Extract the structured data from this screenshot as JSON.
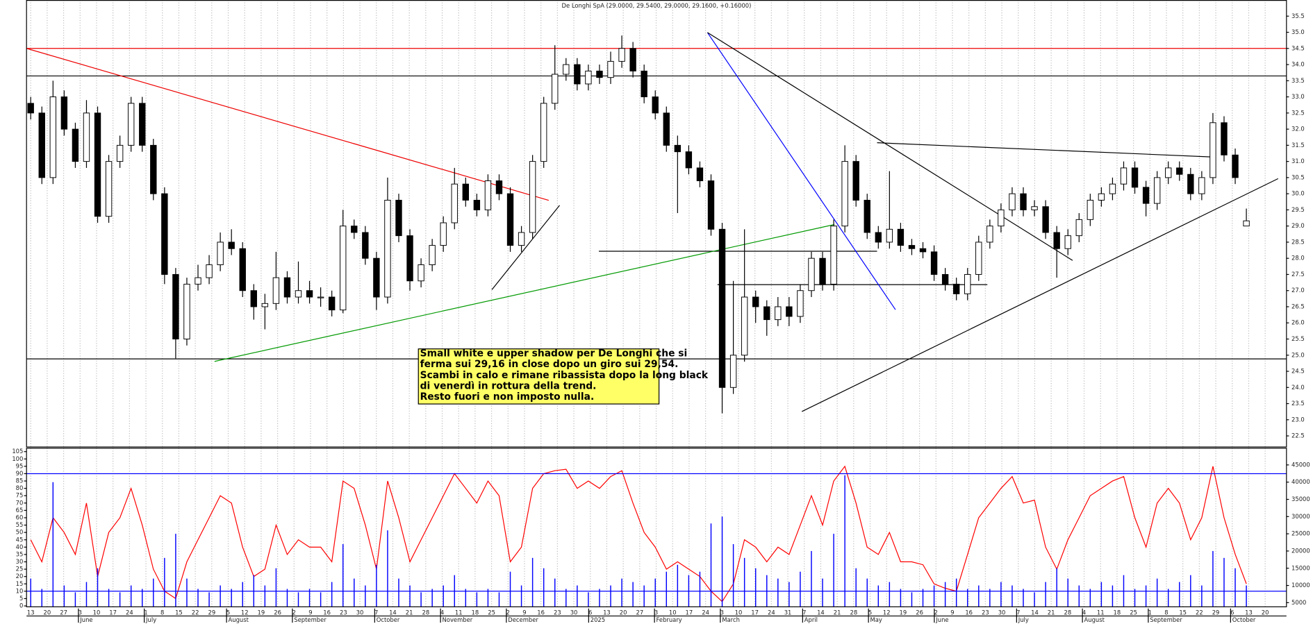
{
  "chart_data": [
    {
      "type": "candlestick",
      "title": "De Longhi SpA (29.0000, 29.5400, 29.0000, 29.1600, +0.16000)",
      "open": [
        32.8,
        32.5,
        30.5,
        33.0,
        32.0,
        31.0,
        32.5,
        29.3,
        31.0,
        31.5,
        32.8,
        31.5,
        30.0,
        27.5,
        25.5,
        27.2,
        27.4,
        27.8,
        28.5,
        28.3,
        27.0,
        26.5,
        26.6,
        27.4,
        26.8,
        27.0,
        26.8,
        26.8,
        26.4,
        29.0,
        28.8,
        28.0,
        26.8,
        29.8,
        28.7,
        27.3,
        27.8,
        28.4,
        29.1,
        30.3,
        29.8,
        29.5,
        30.4,
        30.0,
        28.4,
        28.8,
        31.0,
        32.8,
        33.7,
        34.0,
        33.4,
        33.8,
        33.6,
        34.1,
        34.5,
        33.8,
        33.0,
        32.5,
        31.5,
        31.3,
        30.8,
        30.4,
        28.9,
        24.0,
        25.0,
        26.8,
        26.5,
        26.1,
        26.5,
        26.2,
        27.0,
        28.0,
        27.2,
        29.0,
        31.0,
        29.8,
        28.8,
        28.5,
        28.9,
        28.4,
        28.3,
        28.2,
        27.5,
        27.2,
        26.9,
        27.5,
        28.5,
        29.0,
        29.5,
        30.0,
        29.5,
        29.6,
        28.8,
        28.3,
        28.7,
        29.2,
        29.8,
        30.0,
        30.3,
        30.8,
        30.2,
        29.7,
        30.5,
        30.8,
        30.6,
        30.0,
        30.5,
        32.2,
        31.2,
        29.0
      ],
      "high": [
        33.0,
        32.7,
        33.5,
        33.2,
        32.2,
        32.9,
        32.7,
        31.2,
        31.8,
        33.0,
        33.0,
        31.7,
        30.2,
        27.7,
        27.4,
        27.8,
        28.1,
        28.8,
        28.9,
        28.5,
        27.2,
        26.9,
        28.2,
        27.6,
        27.9,
        27.3,
        27.1,
        27.0,
        29.5,
        29.2,
        29.0,
        28.2,
        30.5,
        30.0,
        28.9,
        28.0,
        28.6,
        29.3,
        30.8,
        30.5,
        30.0,
        30.6,
        30.6,
        30.2,
        29.0,
        31.2,
        33.0,
        34.6,
        34.2,
        34.2,
        34.0,
        34.0,
        34.4,
        34.9,
        34.7,
        34.0,
        33.2,
        32.7,
        31.8,
        31.5,
        31.0,
        30.6,
        29.1,
        27.3,
        28.9,
        27.0,
        26.7,
        26.8,
        26.8,
        27.2,
        28.2,
        28.2,
        29.2,
        31.5,
        31.2,
        30.0,
        29.0,
        30.7,
        29.1,
        28.6,
        28.5,
        28.4,
        27.7,
        27.4,
        27.7,
        28.7,
        29.2,
        29.7,
        30.2,
        30.2,
        29.8,
        29.8,
        29.0,
        28.9,
        29.4,
        30.0,
        30.2,
        30.5,
        31.0,
        31.0,
        30.4,
        30.7,
        31.0,
        31.0,
        30.8,
        30.7,
        32.5,
        32.4,
        31.4,
        29.54
      ],
      "low": [
        32.3,
        30.3,
        30.3,
        31.8,
        30.8,
        30.8,
        29.1,
        29.1,
        30.8,
        31.3,
        31.3,
        29.8,
        27.2,
        24.9,
        25.3,
        27.0,
        27.2,
        27.6,
        28.1,
        26.8,
        26.1,
        25.8,
        26.4,
        26.6,
        26.6,
        26.6,
        26.5,
        26.2,
        26.3,
        28.6,
        27.8,
        26.4,
        26.6,
        28.5,
        27.0,
        27.1,
        27.6,
        28.2,
        28.9,
        29.6,
        29.3,
        29.3,
        29.8,
        28.2,
        28.2,
        28.6,
        30.8,
        32.6,
        33.5,
        33.2,
        33.2,
        33.4,
        33.4,
        33.9,
        33.6,
        32.8,
        32.3,
        31.3,
        29.4,
        30.6,
        30.2,
        28.7,
        23.2,
        23.8,
        24.8,
        26.0,
        25.6,
        25.9,
        25.9,
        26.0,
        26.8,
        27.0,
        27.0,
        28.8,
        29.6,
        28.6,
        28.3,
        28.3,
        28.2,
        28.1,
        28.0,
        27.3,
        27.0,
        26.7,
        26.7,
        27.3,
        28.3,
        28.8,
        29.3,
        29.3,
        29.3,
        28.6,
        27.4,
        28.1,
        28.5,
        29.0,
        29.6,
        29.8,
        30.1,
        30.0,
        29.3,
        29.5,
        30.3,
        30.4,
        29.8,
        29.8,
        30.3,
        31.0,
        30.3,
        29.0
      ],
      "close": [
        32.5,
        30.5,
        33.0,
        32.0,
        31.0,
        32.5,
        29.3,
        31.0,
        31.5,
        32.8,
        31.5,
        30.0,
        27.5,
        25.5,
        27.2,
        27.4,
        27.8,
        28.5,
        28.3,
        27.0,
        26.5,
        26.6,
        27.4,
        26.8,
        27.0,
        26.8,
        26.8,
        26.4,
        29.0,
        28.8,
        28.0,
        26.8,
        29.8,
        28.7,
        27.3,
        27.8,
        28.4,
        29.1,
        30.3,
        29.8,
        29.5,
        30.4,
        30.0,
        28.4,
        28.8,
        31.0,
        32.8,
        33.7,
        34.0,
        33.4,
        33.8,
        33.6,
        34.1,
        34.5,
        33.8,
        33.0,
        32.5,
        31.5,
        31.3,
        30.8,
        30.4,
        28.9,
        24.0,
        25.0,
        26.8,
        26.5,
        26.1,
        26.5,
        26.2,
        27.0,
        28.0,
        27.2,
        29.0,
        31.0,
        29.8,
        28.8,
        28.5,
        28.9,
        28.4,
        28.3,
        28.2,
        27.5,
        27.2,
        26.9,
        27.5,
        28.5,
        29.0,
        29.5,
        30.0,
        29.5,
        29.6,
        28.8,
        28.3,
        28.7,
        29.2,
        29.8,
        30.0,
        30.3,
        30.8,
        30.2,
        29.7,
        30.5,
        30.8,
        30.6,
        30.0,
        30.5,
        32.2,
        31.2,
        30.5,
        29.16
      ],
      "ylim": [
        22.17,
        36.0
      ],
      "yticks": [
        22.5,
        {
          "value": 23,
          "label": "23.0"
        },
        23.5,
        {
          "value": 24,
          "label": "24.0"
        },
        24.5,
        {
          "value": 25,
          "label": "25.0"
        },
        25.5,
        {
          "value": 26,
          "label": "26.0"
        },
        26.5,
        {
          "value": 27,
          "label": "27.0"
        },
        27.5,
        {
          "value": 28,
          "label": "28.0"
        },
        28.5,
        {
          "value": 29,
          "label": "29.0"
        },
        29.5,
        {
          "value": 30,
          "label": "30.0"
        },
        30.5,
        {
          "value": 31,
          "label": "31.0"
        },
        31.5,
        {
          "value": 32,
          "label": "32.0"
        },
        32.5,
        {
          "value": 33,
          "label": "33.0"
        },
        33.5,
        {
          "value": 34,
          "label": "34.0"
        },
        34.5,
        {
          "value": 35,
          "label": "35.0"
        },
        35.5
      ],
      "up_color": "#ffffff",
      "down_color": "#000000",
      "annotation": [
        "Small white e upper shadow per De Longhi che si",
        "ferma sui 29,16 in close dopo un giro sui 29,54.",
        "Scambi in calo e rimane ribassista dopo la long black",
        "di venerdì in rottura della trend.",
        "Resto fuori e non imposto nulla."
      ],
      "week_labels": [
        13,
        20,
        27,
        3,
        10,
        17,
        24,
        1,
        8,
        15,
        22,
        29,
        5,
        12,
        19,
        26,
        2,
        9,
        16,
        23,
        30,
        7,
        14,
        21,
        28,
        4,
        11,
        18,
        25,
        2,
        9,
        16,
        23,
        30,
        6,
        13,
        20,
        27,
        3,
        10,
        17,
        24,
        3,
        10,
        17,
        24,
        31,
        7,
        14,
        21,
        28,
        5,
        12,
        19,
        26,
        2,
        9,
        16,
        23,
        30,
        7,
        14,
        21,
        28,
        4,
        11,
        18,
        25,
        1,
        8,
        15,
        22,
        29,
        6,
        13,
        20
      ],
      "month_labels": [
        "June",
        "July",
        "August",
        "September",
        "October",
        "November",
        "December",
        "2025",
        "February",
        "March",
        "April",
        "May",
        "June",
        "July",
        "August",
        "September",
        "October"
      ]
    },
    {
      "type": "line",
      "series": [
        {
          "color": "#ff0000",
          "values": [
            45,
            30,
            60,
            50,
            35,
            70,
            20,
            50,
            60,
            80,
            55,
            25,
            10,
            5,
            30,
            45,
            60,
            75,
            70,
            40,
            20,
            25,
            55,
            35,
            45,
            40,
            40,
            30,
            85,
            80,
            55,
            25,
            85,
            60,
            30,
            45,
            60,
            75,
            90,
            80,
            70,
            85,
            75,
            30,
            40,
            80,
            90,
            92,
            93,
            80,
            85,
            80,
            88,
            92,
            70,
            50,
            40,
            25,
            30,
            25,
            20,
            10,
            3,
            15,
            45,
            40,
            30,
            40,
            35,
            55,
            75,
            55,
            85,
            95,
            70,
            40,
            35,
            50,
            30,
            30,
            28,
            15,
            12,
            10,
            35,
            60,
            70,
            80,
            88,
            70,
            72,
            40,
            25,
            45,
            60,
            75,
            80,
            85,
            88,
            60,
            40,
            70,
            80,
            70,
            45,
            60,
            95,
            60,
            35,
            15
          ]
        },
        {
          "type": "bar",
          "axis": "y2",
          "color": "#0000ff",
          "values": [
            12000,
            9000,
            40000,
            10000,
            8000,
            11000,
            15000,
            9000,
            8000,
            10000,
            9000,
            12000,
            18000,
            25000,
            12000,
            9000,
            8000,
            10000,
            9000,
            11000,
            13000,
            10000,
            15000,
            9000,
            8000,
            9000,
            8000,
            11000,
            22000,
            12000,
            10000,
            16000,
            26000,
            12000,
            10000,
            8000,
            9000,
            10000,
            13000,
            9000,
            8000,
            9000,
            8000,
            14000,
            10000,
            18000,
            15000,
            12000,
            9000,
            10000,
            8000,
            9000,
            10000,
            12000,
            11000,
            10000,
            12000,
            14000,
            16000,
            13000,
            14000,
            28000,
            30000,
            22000,
            18000,
            15000,
            13000,
            12000,
            11000,
            14000,
            20000,
            12000,
            25000,
            42000,
            15000,
            12000,
            10000,
            11000,
            9000,
            8000,
            9000,
            10000,
            11000,
            12000,
            9000,
            10000,
            9000,
            11000,
            10000,
            9000,
            8000,
            11000,
            15000,
            12000,
            10000,
            9000,
            11000,
            10000,
            13000,
            9000,
            10000,
            12000,
            9000,
            11000,
            13000,
            10000,
            20000,
            18000,
            15000,
            10000
          ]
        }
      ],
      "ylim": [
        -0.6,
        107.3
      ],
      "yticks": [
        0,
        5,
        10,
        15,
        20,
        25,
        30,
        35,
        40,
        45,
        50,
        55,
        60,
        65,
        70,
        75,
        80,
        85,
        90,
        95,
        100,
        105
      ],
      "y2lim": [
        3800,
        49850
      ],
      "y2ticks": [
        5000,
        10000,
        15000,
        20000,
        25000,
        30000,
        35000,
        40000,
        45000
      ],
      "hlines": [
        90,
        10
      ],
      "hline_color": "#0000ff"
    }
  ]
}
